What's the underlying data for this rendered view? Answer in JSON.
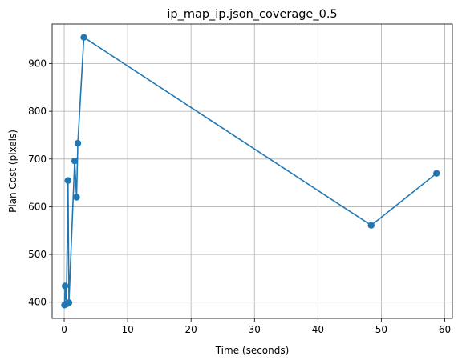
{
  "chart_data": {
    "type": "line",
    "title": "ip_map_ip.json_coverage_0.5",
    "xlabel": "Time (seconds)",
    "ylabel": "Plan Cost (pixels)",
    "xlim": [
      -1.9,
      61.2
    ],
    "ylim": [
      366,
      983
    ],
    "xticks": [
      0,
      10,
      20,
      30,
      40,
      50,
      60
    ],
    "yticks": [
      400,
      500,
      600,
      700,
      800,
      900
    ],
    "grid": true,
    "series": [
      {
        "color": "#1f77b4",
        "marker": "circle",
        "points": [
          {
            "x": 0.05,
            "y": 394
          },
          {
            "x": 0.15,
            "y": 434
          },
          {
            "x": 0.35,
            "y": 396
          },
          {
            "x": 0.6,
            "y": 655
          },
          {
            "x": 0.75,
            "y": 399
          },
          {
            "x": 1.65,
            "y": 696
          },
          {
            "x": 1.95,
            "y": 620
          },
          {
            "x": 2.15,
            "y": 733
          },
          {
            "x": 3.1,
            "y": 955
          },
          {
            "x": 48.4,
            "y": 561
          },
          {
            "x": 58.7,
            "y": 670
          }
        ]
      }
    ]
  }
}
